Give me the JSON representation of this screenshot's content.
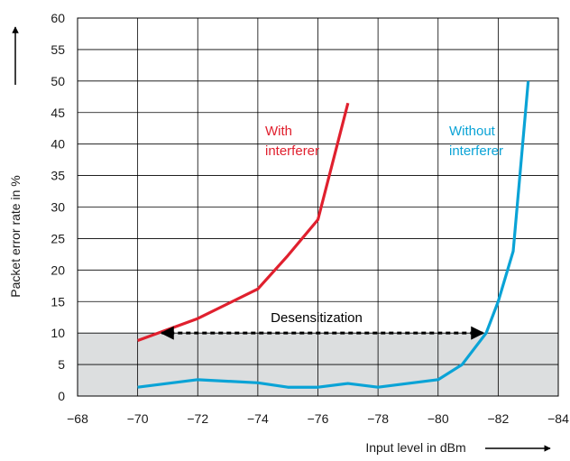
{
  "chart_data": {
    "type": "line",
    "xlabel": "Input level in dBm",
    "ylabel": "Packet error rate in %",
    "xlim": [
      -68,
      -84
    ],
    "ylim": [
      0,
      60
    ],
    "x_ticks": [
      "−68",
      "−70",
      "−72",
      "−74",
      "−76",
      "−78",
      "−80",
      "−82",
      "−84"
    ],
    "y_ticks": [
      "0",
      "5",
      "10",
      "15",
      "20",
      "25",
      "30",
      "35",
      "40",
      "45",
      "50",
      "55",
      "60"
    ],
    "grid": true,
    "shaded_band": {
      "y_from": 0,
      "y_to": 10,
      "color": "#dcdedf"
    },
    "series": [
      {
        "name": "With interferer",
        "label_lines": [
          "With",
          "interferer"
        ],
        "color": "#e0202e",
        "points": [
          [
            -70,
            8.8
          ],
          [
            -72,
            12.3
          ],
          [
            -74,
            17
          ],
          [
            -75,
            22.3
          ],
          [
            -76,
            28
          ],
          [
            -77,
            46.5
          ]
        ]
      },
      {
        "name": "Without interferer",
        "label_lines": [
          "Without",
          "interferer"
        ],
        "color": "#0aa3d6",
        "points": [
          [
            -70,
            1.4
          ],
          [
            -72,
            2.6
          ],
          [
            -74,
            2.1
          ],
          [
            -75,
            1.4
          ],
          [
            -76,
            1.4
          ],
          [
            -77,
            2
          ],
          [
            -78,
            1.4
          ],
          [
            -80,
            2.6
          ],
          [
            -80.8,
            5
          ],
          [
            -81.6,
            10
          ],
          [
            -82,
            15
          ],
          [
            -82.5,
            23
          ],
          [
            -83,
            50
          ]
        ]
      }
    ],
    "annotation": {
      "text": "Desensitization",
      "arrow_from_x": -70.8,
      "arrow_to_x": -81.5,
      "arrow_y": 10
    }
  }
}
